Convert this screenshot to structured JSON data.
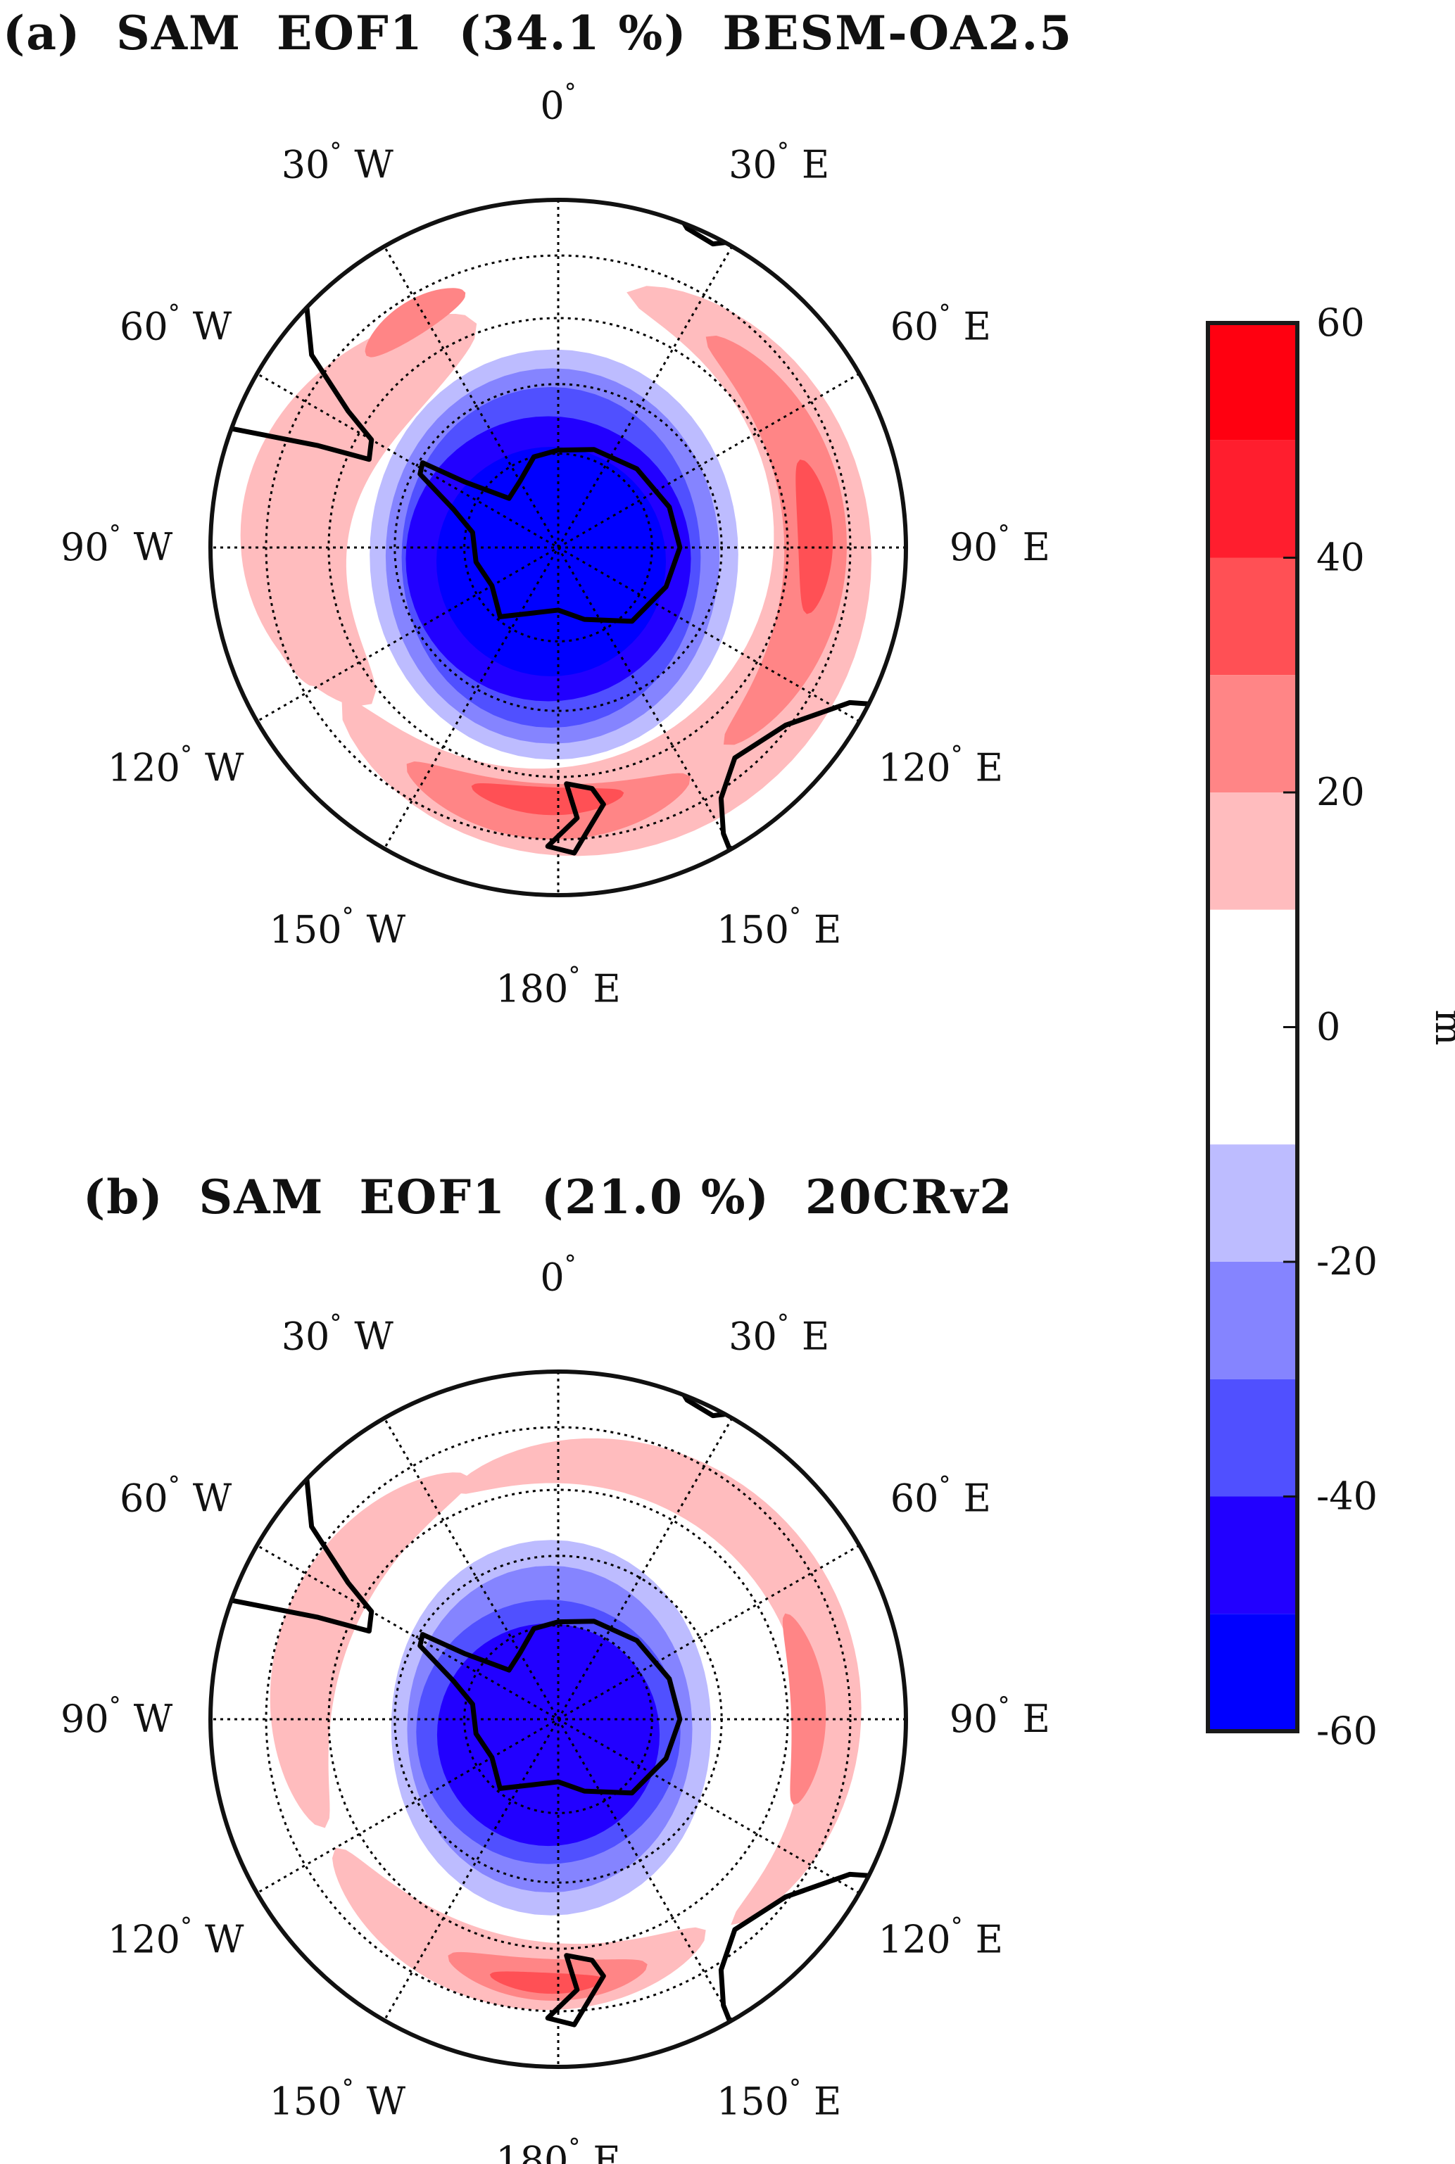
{
  "panels": [
    {
      "title": "(a)  SAM  EOF1  (34.1 %)  BESM-OA2.5"
    },
    {
      "title": "(b)  SAM  EOF1  (21.0 %)  20CRv2"
    }
  ],
  "lon_labels": [
    {
      "lon": 0,
      "num": "0",
      "hemi": ""
    },
    {
      "lon": 30,
      "num": "30",
      "hemi": "E"
    },
    {
      "lon": 60,
      "num": "60",
      "hemi": "E"
    },
    {
      "lon": 90,
      "num": "90",
      "hemi": "E"
    },
    {
      "lon": 120,
      "num": "120",
      "hemi": "E"
    },
    {
      "lon": 150,
      "num": "150",
      "hemi": "E"
    },
    {
      "lon": 180,
      "num": "180",
      "hemi": "E"
    },
    {
      "lon": -150,
      "num": "150",
      "hemi": "W"
    },
    {
      "lon": -120,
      "num": "120",
      "hemi": "W"
    },
    {
      "lon": -90,
      "num": "90",
      "hemi": "W"
    },
    {
      "lon": -60,
      "num": "60",
      "hemi": "W"
    },
    {
      "lon": -30,
      "num": "30",
      "hemi": "W"
    }
  ],
  "degree_symbol": "°",
  "colorbar": {
    "unit": "m",
    "range": [
      -60,
      60
    ],
    "ticks": [
      "60",
      "40",
      "20",
      "0",
      "-20",
      "-40",
      "-60"
    ],
    "tick_values": [
      60,
      40,
      20,
      0,
      -20,
      -40,
      -60
    ],
    "levels": [
      {
        "from": 50,
        "to": 60,
        "color": "#ff0010"
      },
      {
        "from": 40,
        "to": 50,
        "color": "#ff1e2e"
      },
      {
        "from": 30,
        "to": 40,
        "color": "#ff5055"
      },
      {
        "from": 20,
        "to": 30,
        "color": "#ff8586"
      },
      {
        "from": 10,
        "to": 20,
        "color": "#ffbcbe"
      },
      {
        "from": -10,
        "to": 10,
        "color": "#ffffff"
      },
      {
        "from": -20,
        "to": -10,
        "color": "#bdbcff"
      },
      {
        "from": -30,
        "to": -20,
        "color": "#8584ff"
      },
      {
        "from": -40,
        "to": -30,
        "color": "#5050ff"
      },
      {
        "from": -50,
        "to": -40,
        "color": "#2200ff"
      },
      {
        "from": -60,
        "to": -50,
        "color": "#0000ff"
      }
    ]
  }
}
